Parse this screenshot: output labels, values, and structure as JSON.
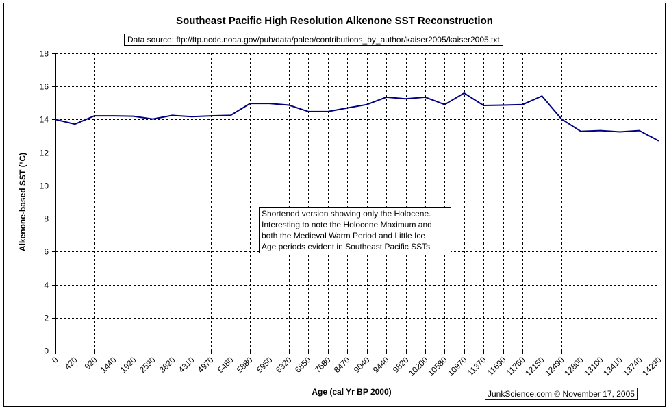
{
  "chart_data": {
    "type": "line",
    "title": "Southeast Pacific High Resolution Alkenone SST Reconstruction",
    "subtitle": "Data source: ftp://ftp.ncdc.noaa.gov/pub/data/paleo/contributions_by_author/kaiser2005/kaiser2005.txt",
    "xlabel": "Age (cal Yr BP 2000)",
    "ylabel": "Alkenone-based SST (°C)",
    "ylim": [
      0,
      18
    ],
    "yticks": [
      "0",
      "2",
      "4",
      "6",
      "8",
      "10",
      "12",
      "14",
      "16",
      "18"
    ],
    "grid": true,
    "legend": "none",
    "categories": [
      "0",
      "420",
      "920",
      "1440",
      "1920",
      "2590",
      "3820",
      "4310",
      "4970",
      "5480",
      "5880",
      "5950",
      "6320",
      "6850",
      "7680",
      "8470",
      "9040",
      "9440",
      "9820",
      "10200",
      "10580",
      "10970",
      "11370",
      "11690",
      "11760",
      "12150",
      "12490",
      "12800",
      "13100",
      "13410",
      "13740",
      "14290"
    ],
    "series": [
      {
        "name": "Alkenone SST",
        "color": "#000080",
        "values": [
          14.0,
          13.72,
          14.22,
          14.22,
          14.2,
          14.03,
          14.25,
          14.17,
          14.22,
          14.25,
          14.97,
          14.97,
          14.87,
          14.48,
          14.48,
          14.7,
          14.9,
          15.35,
          15.25,
          15.35,
          14.9,
          15.6,
          14.85,
          14.87,
          14.9,
          15.42,
          14.03,
          13.28,
          13.33,
          13.25,
          13.33,
          12.7
        ]
      }
    ],
    "annotations": [
      "Shortened version showing only the Holocene.",
      "Interesting to note the Holocene Maximum and",
      "both the Medieval Warm Period and Little Ice",
      "Age periods evident in Southeast Pacific SSTs"
    ]
  },
  "credit": "JunkScience.com ©  November 17, 2005"
}
